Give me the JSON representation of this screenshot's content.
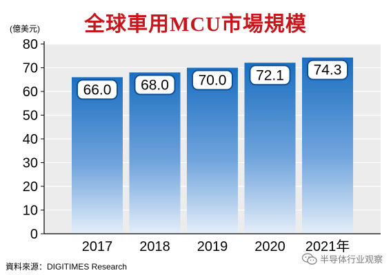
{
  "chart_data": {
    "type": "bar",
    "title": "全球車用MCU市場規模",
    "unit_label": "(億美元)",
    "categories": [
      "2017",
      "2018",
      "2019",
      "2020",
      "2021年"
    ],
    "values": [
      66.0,
      68.0,
      70.0,
      72.1,
      74.3
    ],
    "value_labels": [
      "66.0",
      "68.0",
      "70.0",
      "72.1",
      "74.3"
    ],
    "yticks": [
      0,
      10,
      20,
      30,
      40,
      50,
      60,
      70,
      80
    ],
    "ylim": [
      0,
      80
    ],
    "grid": true,
    "colors": {
      "bar_top": "#1a6ec0",
      "bar_bottom": "#e4eef9",
      "plot_bg": "#ececec",
      "title": "#c8161d"
    }
  },
  "source": "資料來源：DIGITIMES Research",
  "watermark": {
    "icon": "wechat-icon",
    "text": "半导体行业观察"
  }
}
